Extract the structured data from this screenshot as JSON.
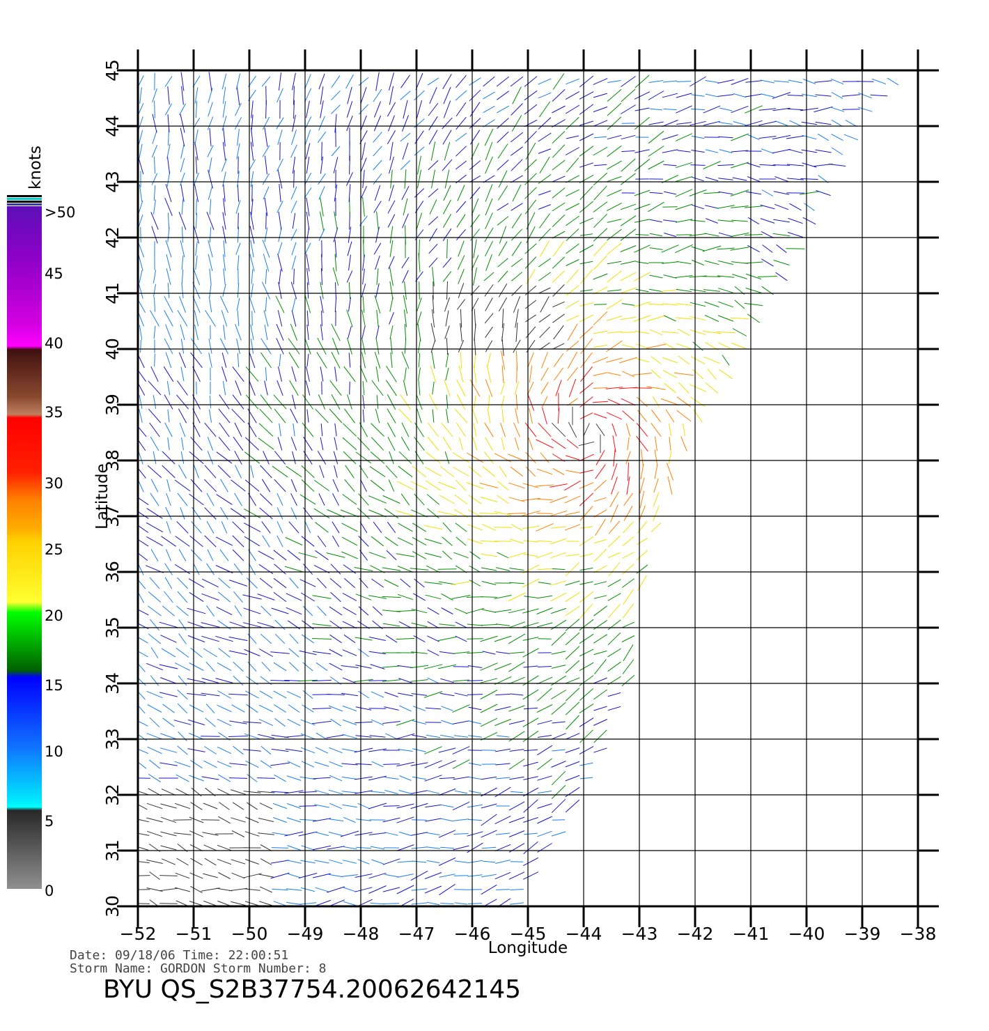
{
  "map": {
    "x_axis_title": "Longitude",
    "y_axis_title": "Latitude",
    "lon_ticks": [
      "-52",
      "-51",
      "-50",
      "-49",
      "-48",
      "-47",
      "-46",
      "-45",
      "-44",
      "-43",
      "-42",
      "-41",
      "-40",
      "-39",
      "-38"
    ],
    "lat_ticks": [
      "30",
      "31",
      "32",
      "33",
      "34",
      "35",
      "36",
      "37",
      "38",
      "39",
      "40",
      "41",
      "42",
      "43",
      "44",
      "45"
    ],
    "lon_range": [
      -52,
      -38
    ],
    "lat_range": [
      30,
      45
    ],
    "swath_edge_lon_at_lat": [
      [
        -45.2,
        30
      ],
      [
        -44.0,
        32
      ],
      [
        -43.2,
        34
      ],
      [
        -42.9,
        36
      ],
      [
        -42.3,
        38
      ],
      [
        -41.2,
        40
      ],
      [
        -40.0,
        42
      ],
      [
        -39.5,
        43
      ],
      [
        -39.0,
        44
      ],
      [
        -38.3,
        45
      ]
    ],
    "hurricane_center": {
      "lon": -43.9,
      "lat": 38.5
    },
    "vector_color_scale": "knots"
  },
  "colorbar": {
    "title": "knots",
    "labels": [
      ">50",
      "45",
      "40",
      "35",
      "30",
      "25",
      "20",
      "15",
      "10",
      "5",
      "0"
    ],
    "colors": [
      "#6000c0",
      "#a000d0",
      "#ff00ff",
      "#5a1010",
      "#b07050",
      "#ff0000",
      "#e03000",
      "#ff8000",
      "#ffd000",
      "#ffff20",
      "#00ff00",
      "#008000",
      "#0000ff",
      "#2090ff",
      "#00ffff",
      "#303030",
      "#808080"
    ]
  },
  "footer": {
    "line1": "Date: 09/18/06   Time: 22:00:51",
    "line2": "Storm  Name: GORDON   Storm  Number: 8",
    "title": "BYU  QS_S2B37754.20062642145"
  }
}
